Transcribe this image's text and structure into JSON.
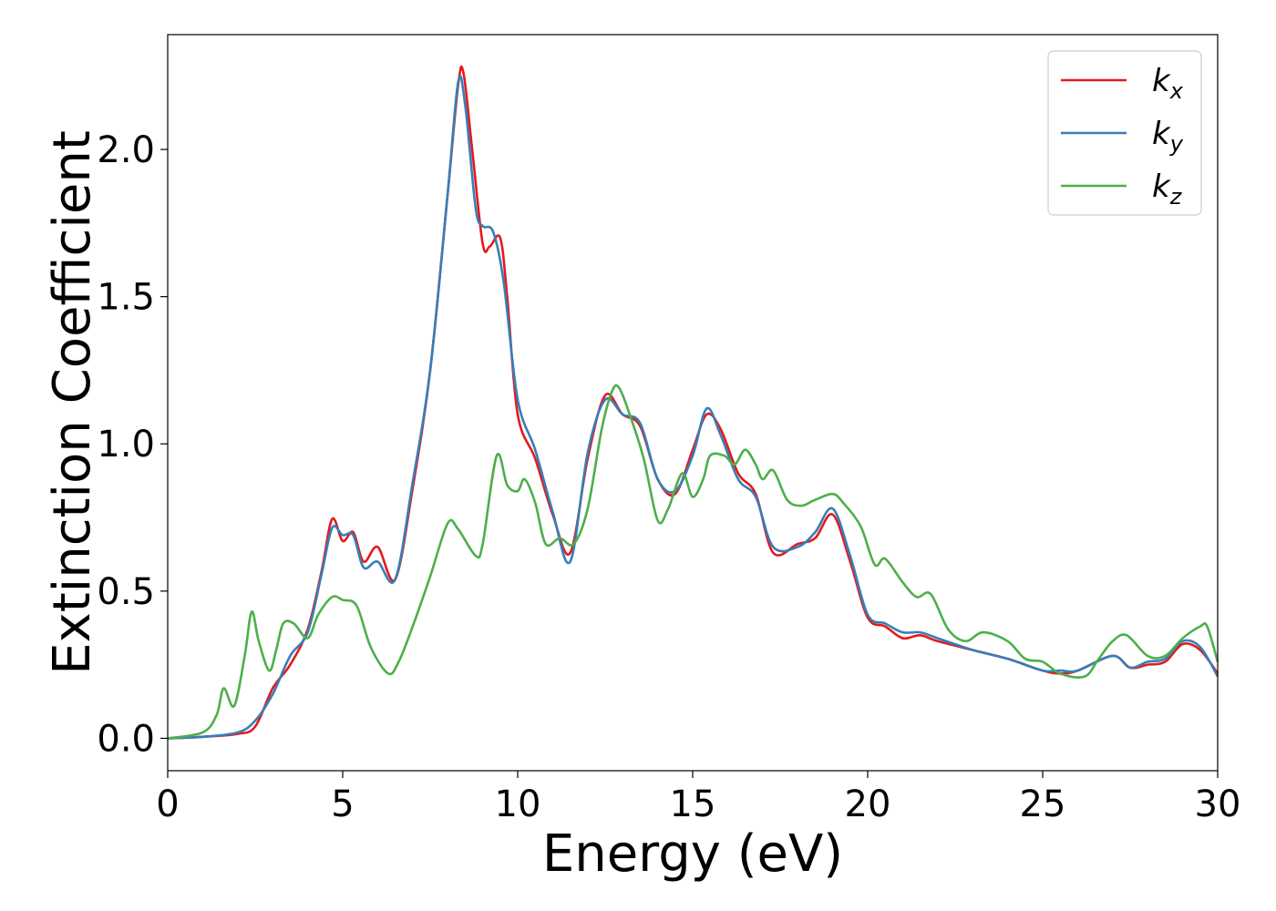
{
  "chart_data": {
    "type": "line",
    "xlabel": "Energy (eV)",
    "ylabel": "Extinction Coefficient",
    "xlim": [
      0,
      30
    ],
    "ylim": [
      -0.11,
      2.39
    ],
    "xticks": [
      0,
      5,
      10,
      15,
      20,
      25,
      30
    ],
    "xtick_labels": [
      "0",
      "5",
      "10",
      "15",
      "20",
      "25",
      "30"
    ],
    "yticks": [
      0.0,
      0.5,
      1.0,
      1.5,
      2.0
    ],
    "ytick_labels": [
      "0.0",
      "0.5",
      "1.0",
      "1.5",
      "2.0"
    ],
    "grid": false,
    "legend_position": "top-right",
    "series": [
      {
        "name": "k",
        "subscript": "x",
        "color": "#e41a1c",
        "points": [
          [
            0,
            0
          ],
          [
            1,
            0.005
          ],
          [
            2,
            0.015
          ],
          [
            2.5,
            0.04
          ],
          [
            3,
            0.17
          ],
          [
            3.5,
            0.25
          ],
          [
            4,
            0.37
          ],
          [
            4.4,
            0.57
          ],
          [
            4.7,
            0.745
          ],
          [
            5,
            0.67
          ],
          [
            5.3,
            0.7
          ],
          [
            5.6,
            0.6
          ],
          [
            6,
            0.65
          ],
          [
            6.5,
            0.54
          ],
          [
            7,
            0.85
          ],
          [
            7.5,
            1.25
          ],
          [
            8,
            1.85
          ],
          [
            8.3,
            2.22
          ],
          [
            8.45,
            2.26
          ],
          [
            8.7,
            2.0
          ],
          [
            9,
            1.68
          ],
          [
            9.2,
            1.67
          ],
          [
            9.5,
            1.7
          ],
          [
            9.7,
            1.5
          ],
          [
            10,
            1.1
          ],
          [
            10.5,
            0.95
          ],
          [
            11,
            0.76
          ],
          [
            11.5,
            0.63
          ],
          [
            12,
            0.95
          ],
          [
            12.5,
            1.165
          ],
          [
            13,
            1.1
          ],
          [
            13.5,
            1.06
          ],
          [
            14,
            0.88
          ],
          [
            14.5,
            0.83
          ],
          [
            15,
            0.98
          ],
          [
            15.4,
            1.1
          ],
          [
            15.8,
            1.05
          ],
          [
            16.3,
            0.9
          ],
          [
            16.8,
            0.83
          ],
          [
            17.3,
            0.63
          ],
          [
            18,
            0.66
          ],
          [
            18.5,
            0.68
          ],
          [
            19,
            0.76
          ],
          [
            19.5,
            0.6
          ],
          [
            20,
            0.41
          ],
          [
            20.5,
            0.38
          ],
          [
            21,
            0.34
          ],
          [
            21.5,
            0.35
          ],
          [
            22,
            0.33
          ],
          [
            23,
            0.3
          ],
          [
            24,
            0.27
          ],
          [
            25,
            0.23
          ],
          [
            25.5,
            0.22
          ],
          [
            26,
            0.23
          ],
          [
            27,
            0.28
          ],
          [
            27.5,
            0.24
          ],
          [
            28,
            0.25
          ],
          [
            28.5,
            0.26
          ],
          [
            29,
            0.32
          ],
          [
            29.5,
            0.3
          ],
          [
            30,
            0.22
          ]
        ]
      },
      {
        "name": "k",
        "subscript": "y",
        "color": "#377eb8",
        "points": [
          [
            0,
            0
          ],
          [
            1,
            0.005
          ],
          [
            2,
            0.02
          ],
          [
            2.5,
            0.06
          ],
          [
            3,
            0.15
          ],
          [
            3.5,
            0.28
          ],
          [
            4,
            0.36
          ],
          [
            4.4,
            0.56
          ],
          [
            4.7,
            0.715
          ],
          [
            5,
            0.69
          ],
          [
            5.3,
            0.69
          ],
          [
            5.6,
            0.58
          ],
          [
            6,
            0.6
          ],
          [
            6.5,
            0.54
          ],
          [
            7,
            0.87
          ],
          [
            7.5,
            1.25
          ],
          [
            8,
            1.85
          ],
          [
            8.3,
            2.23
          ],
          [
            8.5,
            2.15
          ],
          [
            8.8,
            1.8
          ],
          [
            9,
            1.74
          ],
          [
            9.3,
            1.72
          ],
          [
            9.6,
            1.55
          ],
          [
            10,
            1.15
          ],
          [
            10.5,
            0.98
          ],
          [
            11,
            0.77
          ],
          [
            11.5,
            0.6
          ],
          [
            12,
            0.97
          ],
          [
            12.5,
            1.15
          ],
          [
            13,
            1.1
          ],
          [
            13.5,
            1.07
          ],
          [
            14,
            0.88
          ],
          [
            14.5,
            0.84
          ],
          [
            15,
            0.96
          ],
          [
            15.4,
            1.12
          ],
          [
            15.8,
            1.03
          ],
          [
            16.3,
            0.88
          ],
          [
            16.8,
            0.82
          ],
          [
            17.3,
            0.65
          ],
          [
            18,
            0.65
          ],
          [
            18.5,
            0.7
          ],
          [
            19,
            0.78
          ],
          [
            19.5,
            0.62
          ],
          [
            20,
            0.42
          ],
          [
            20.5,
            0.39
          ],
          [
            21,
            0.36
          ],
          [
            21.5,
            0.36
          ],
          [
            22,
            0.34
          ],
          [
            23,
            0.3
          ],
          [
            24,
            0.27
          ],
          [
            25,
            0.23
          ],
          [
            25.5,
            0.23
          ],
          [
            26,
            0.23
          ],
          [
            27,
            0.28
          ],
          [
            27.5,
            0.24
          ],
          [
            28,
            0.26
          ],
          [
            28.5,
            0.27
          ],
          [
            29,
            0.33
          ],
          [
            29.5,
            0.31
          ],
          [
            30,
            0.21
          ]
        ]
      },
      {
        "name": "k",
        "subscript": "z",
        "color": "#4daf4a",
        "points": [
          [
            0,
            0
          ],
          [
            1,
            0.02
          ],
          [
            1.4,
            0.08
          ],
          [
            1.6,
            0.17
          ],
          [
            1.9,
            0.11
          ],
          [
            2.2,
            0.28
          ],
          [
            2.4,
            0.43
          ],
          [
            2.6,
            0.33
          ],
          [
            2.9,
            0.23
          ],
          [
            3.1,
            0.3
          ],
          [
            3.3,
            0.39
          ],
          [
            3.6,
            0.39
          ],
          [
            4,
            0.34
          ],
          [
            4.3,
            0.42
          ],
          [
            4.7,
            0.48
          ],
          [
            5,
            0.47
          ],
          [
            5.4,
            0.45
          ],
          [
            5.8,
            0.31
          ],
          [
            6.3,
            0.22
          ],
          [
            6.6,
            0.26
          ],
          [
            7,
            0.38
          ],
          [
            7.5,
            0.55
          ],
          [
            8,
            0.73
          ],
          [
            8.3,
            0.71
          ],
          [
            8.8,
            0.62
          ],
          [
            9,
            0.66
          ],
          [
            9.4,
            0.96
          ],
          [
            9.7,
            0.86
          ],
          [
            10,
            0.84
          ],
          [
            10.2,
            0.88
          ],
          [
            10.5,
            0.8
          ],
          [
            10.8,
            0.66
          ],
          [
            11.2,
            0.68
          ],
          [
            11.6,
            0.66
          ],
          [
            12,
            0.78
          ],
          [
            12.4,
            1.05
          ],
          [
            12.7,
            1.18
          ],
          [
            12.9,
            1.19
          ],
          [
            13.2,
            1.1
          ],
          [
            13.6,
            0.95
          ],
          [
            14,
            0.74
          ],
          [
            14.3,
            0.78
          ],
          [
            14.7,
            0.9
          ],
          [
            15,
            0.82
          ],
          [
            15.3,
            0.88
          ],
          [
            15.5,
            0.96
          ],
          [
            15.9,
            0.96
          ],
          [
            16.2,
            0.93
          ],
          [
            16.5,
            0.98
          ],
          [
            16.8,
            0.93
          ],
          [
            17,
            0.88
          ],
          [
            17.3,
            0.91
          ],
          [
            17.7,
            0.81
          ],
          [
            18.1,
            0.79
          ],
          [
            18.5,
            0.81
          ],
          [
            19,
            0.83
          ],
          [
            19.3,
            0.8
          ],
          [
            19.8,
            0.72
          ],
          [
            20.2,
            0.59
          ],
          [
            20.5,
            0.61
          ],
          [
            21,
            0.53
          ],
          [
            21.4,
            0.48
          ],
          [
            21.8,
            0.49
          ],
          [
            22.3,
            0.37
          ],
          [
            22.8,
            0.33
          ],
          [
            23.3,
            0.36
          ],
          [
            24,
            0.33
          ],
          [
            24.5,
            0.27
          ],
          [
            25,
            0.26
          ],
          [
            25.5,
            0.22
          ],
          [
            26.2,
            0.21
          ],
          [
            26.6,
            0.27
          ],
          [
            27,
            0.33
          ],
          [
            27.4,
            0.35
          ],
          [
            28,
            0.28
          ],
          [
            28.5,
            0.28
          ],
          [
            29,
            0.34
          ],
          [
            29.5,
            0.38
          ],
          [
            29.7,
            0.38
          ],
          [
            30,
            0.26
          ]
        ]
      }
    ]
  }
}
